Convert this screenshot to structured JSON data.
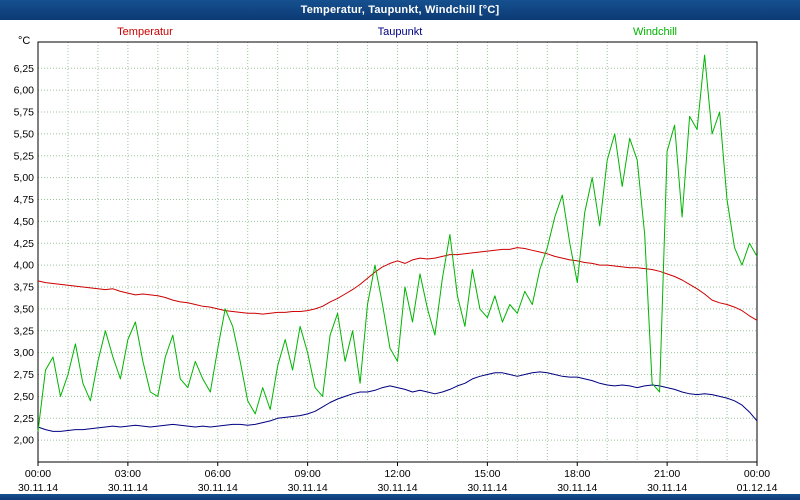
{
  "title_bar": {
    "title": "Temperatur, Taupunkt, Windchill [°C]"
  },
  "axis_unit": "°C",
  "legend": [
    {
      "label": "Temperatur",
      "color": "#cc0000"
    },
    {
      "label": "Taupunkt",
      "color": "#000080"
    },
    {
      "label": "Windchill",
      "color": "#00b400"
    }
  ],
  "colors": {
    "title_bar": "#0c3a74",
    "grid": "#9cc49c",
    "axis_border": "#000000",
    "background": "#ffffff"
  },
  "chart_data": {
    "type": "line",
    "title": "Temperatur, Taupunkt, Windchill [°C]",
    "xlabel": "",
    "ylabel": "°C",
    "grid": "dotted",
    "legend_position": "top",
    "x_range_hours": [
      0,
      24
    ],
    "sample_interval_minutes": 15,
    "x_major_ticks": [
      "00:00",
      "03:00",
      "06:00",
      "09:00",
      "12:00",
      "15:00",
      "18:00",
      "21:00",
      "00:00"
    ],
    "x_date_labels": [
      "30.11.14",
      "30.11.14",
      "30.11.14",
      "30.11.14",
      "30.11.14",
      "30.11.14",
      "30.11.14",
      "30.11.14",
      "01.12.14"
    ],
    "ylim": [
      1.75,
      6.55
    ],
    "y_ticks": [
      2.0,
      2.25,
      2.5,
      2.75,
      3.0,
      3.25,
      3.5,
      3.75,
      4.0,
      4.25,
      4.5,
      4.75,
      5.0,
      5.25,
      5.5,
      5.75,
      6.0,
      6.25
    ],
    "y_tick_labels": [
      "2,00",
      "2,25",
      "2,50",
      "2,75",
      "3,00",
      "3,25",
      "3,50",
      "3,75",
      "4,00",
      "4,25",
      "4,50",
      "4,75",
      "5,00",
      "5,25",
      "5,50",
      "5,75",
      "6,00",
      "6,25"
    ],
    "series": [
      {
        "name": "Temperatur",
        "color": "#cc0000",
        "values": [
          3.82,
          3.8,
          3.79,
          3.78,
          3.77,
          3.76,
          3.75,
          3.74,
          3.73,
          3.72,
          3.73,
          3.7,
          3.68,
          3.66,
          3.67,
          3.66,
          3.65,
          3.63,
          3.6,
          3.58,
          3.57,
          3.55,
          3.53,
          3.52,
          3.5,
          3.48,
          3.47,
          3.46,
          3.45,
          3.45,
          3.44,
          3.45,
          3.46,
          3.46,
          3.47,
          3.47,
          3.48,
          3.5,
          3.53,
          3.58,
          3.62,
          3.67,
          3.72,
          3.78,
          3.85,
          3.92,
          3.98,
          4.02,
          4.05,
          4.02,
          4.06,
          4.08,
          4.07,
          4.08,
          4.1,
          4.12,
          4.12,
          4.13,
          4.14,
          4.15,
          4.16,
          4.17,
          4.18,
          4.18,
          4.2,
          4.19,
          4.17,
          4.15,
          4.13,
          4.1,
          4.08,
          4.06,
          4.05,
          4.03,
          4.02,
          4.0,
          4.0,
          3.99,
          3.98,
          3.97,
          3.97,
          3.96,
          3.95,
          3.93,
          3.9,
          3.87,
          3.83,
          3.78,
          3.73,
          3.67,
          3.6,
          3.57,
          3.55,
          3.52,
          3.48,
          3.42,
          3.37
        ]
      },
      {
        "name": "Taupunkt",
        "color": "#000080",
        "values": [
          2.15,
          2.12,
          2.1,
          2.1,
          2.11,
          2.12,
          2.12,
          2.13,
          2.14,
          2.15,
          2.16,
          2.15,
          2.16,
          2.17,
          2.16,
          2.15,
          2.16,
          2.17,
          2.18,
          2.17,
          2.16,
          2.15,
          2.16,
          2.15,
          2.16,
          2.17,
          2.18,
          2.18,
          2.17,
          2.18,
          2.2,
          2.22,
          2.25,
          2.26,
          2.27,
          2.28,
          2.3,
          2.33,
          2.38,
          2.43,
          2.47,
          2.5,
          2.53,
          2.55,
          2.55,
          2.57,
          2.6,
          2.62,
          2.6,
          2.58,
          2.55,
          2.57,
          2.55,
          2.53,
          2.55,
          2.58,
          2.62,
          2.65,
          2.7,
          2.73,
          2.75,
          2.77,
          2.77,
          2.75,
          2.73,
          2.75,
          2.77,
          2.78,
          2.77,
          2.75,
          2.73,
          2.72,
          2.72,
          2.7,
          2.68,
          2.65,
          2.63,
          2.62,
          2.63,
          2.62,
          2.6,
          2.62,
          2.63,
          2.62,
          2.6,
          2.58,
          2.55,
          2.53,
          2.52,
          2.53,
          2.52,
          2.5,
          2.48,
          2.45,
          2.4,
          2.32,
          2.22
        ]
      },
      {
        "name": "Windchill",
        "color": "#00b400",
        "values": [
          2.1,
          2.8,
          2.95,
          2.5,
          2.75,
          3.1,
          2.65,
          2.45,
          2.9,
          3.25,
          2.95,
          2.7,
          3.15,
          3.35,
          2.9,
          2.55,
          2.5,
          2.95,
          3.2,
          2.7,
          2.6,
          2.9,
          2.7,
          2.55,
          3.05,
          3.5,
          3.3,
          2.9,
          2.45,
          2.3,
          2.6,
          2.35,
          2.85,
          3.15,
          2.8,
          3.3,
          3.0,
          2.6,
          2.5,
          3.2,
          3.45,
          2.9,
          3.25,
          2.65,
          3.55,
          4.0,
          3.55,
          3.05,
          2.9,
          3.75,
          3.35,
          3.9,
          3.5,
          3.2,
          3.85,
          4.35,
          3.65,
          3.3,
          3.95,
          3.5,
          3.4,
          3.65,
          3.35,
          3.55,
          3.45,
          3.7,
          3.55,
          3.95,
          4.2,
          4.55,
          4.8,
          4.25,
          3.8,
          4.6,
          5.0,
          4.45,
          5.2,
          5.5,
          4.9,
          5.45,
          5.2,
          4.35,
          2.65,
          2.55,
          5.3,
          5.6,
          4.55,
          5.7,
          5.55,
          6.4,
          5.5,
          5.75,
          4.75,
          4.2,
          4.0,
          4.25,
          4.1
        ]
      }
    ]
  }
}
